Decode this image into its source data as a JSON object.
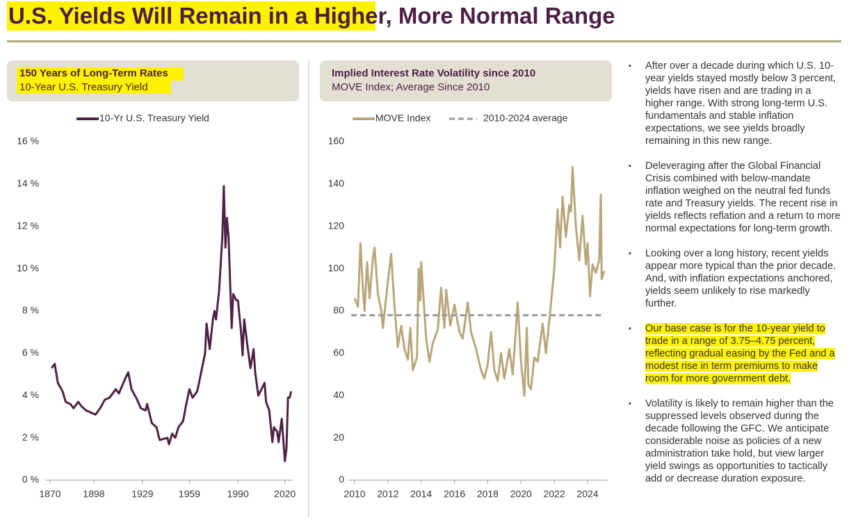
{
  "header": {
    "title": "U.S. Yields Will Remain in a Higher, More Normal Range"
  },
  "chart_data": [
    {
      "type": "line",
      "title": "150 Years of Long-Term Rates",
      "subtitle": "10-Year U.S. Treasury Yield",
      "x": [
        1871,
        1873,
        1875,
        1878,
        1880,
        1883,
        1885,
        1888,
        1890,
        1893,
        1896,
        1899,
        1902,
        1905,
        1908,
        1912,
        1914,
        1918,
        1920,
        1922,
        1925,
        1928,
        1931,
        1932,
        1935,
        1938,
        1940,
        1945,
        1946,
        1948,
        1950,
        1952,
        1955,
        1957,
        1959,
        1961,
        1964,
        1966,
        1969,
        1970,
        1972,
        1974,
        1975,
        1976,
        1978,
        1980,
        1981,
        1982,
        1983,
        1984,
        1986,
        1987,
        1989,
        1990,
        1992,
        1993,
        1994,
        1996,
        1998,
        2000,
        2001,
        2003,
        2005,
        2007,
        2008,
        2010,
        2012,
        2013,
        2015,
        2016,
        2018,
        2019,
        2020,
        2021,
        2022,
        2023,
        2024
      ],
      "series": [
        {
          "name": "10-Yr U.S. Treasury Yield",
          "color": "#4f2146",
          "values": [
            5.3,
            5.5,
            4.6,
            4.2,
            3.7,
            3.6,
            3.4,
            3.7,
            3.5,
            3.3,
            3.2,
            3.1,
            3.4,
            3.8,
            3.9,
            4.3,
            4.1,
            4.8,
            5.1,
            4.3,
            3.9,
            3.4,
            3.3,
            3.6,
            2.7,
            2.5,
            1.9,
            2.0,
            1.7,
            2.2,
            2.0,
            2.5,
            2.8,
            3.6,
            4.3,
            3.9,
            4.2,
            4.9,
            6.0,
            7.4,
            6.2,
            7.6,
            8.0,
            7.6,
            9.0,
            11.5,
            13.9,
            11.0,
            12.4,
            11.5,
            7.2,
            8.8,
            8.5,
            8.5,
            7.0,
            5.9,
            7.6,
            6.4,
            5.3,
            6.2,
            5.1,
            4.0,
            4.3,
            4.6,
            3.7,
            3.3,
            1.8,
            2.5,
            2.3,
            1.8,
            2.9,
            1.9,
            0.9,
            1.5,
            3.9,
            3.9,
            4.2
          ]
        }
      ],
      "xlim": [
        1869,
        2025
      ],
      "xticks": [
        1870,
        1898,
        1929,
        1959,
        1990,
        2020
      ],
      "ylim": [
        0,
        16
      ],
      "yticks": [
        {
          "value": 0,
          "label": "0 %"
        },
        {
          "value": 2,
          "label": "2 %"
        },
        {
          "value": 4,
          "label": "4 %"
        },
        {
          "value": 6,
          "label": "6 %"
        },
        {
          "value": 8,
          "label": "8 %"
        },
        {
          "value": 10,
          "label": "10 %"
        },
        {
          "value": 12,
          "label": "12 %"
        },
        {
          "value": 14,
          "label": "14 %"
        },
        {
          "value": 16,
          "label": "16 %"
        }
      ],
      "grid": false,
      "legend": "top"
    },
    {
      "type": "line",
      "title": "Implied Interest Rate Volatility since 2010",
      "subtitle": "MOVE Index; Average Since 2010",
      "x": [
        2010.0,
        2010.2,
        2010.35,
        2010.5,
        2010.6,
        2010.75,
        2010.9,
        2011.1,
        2011.2,
        2011.4,
        2011.6,
        2011.7,
        2012.0,
        2012.2,
        2012.4,
        2012.6,
        2012.8,
        2013.0,
        2013.2,
        2013.35,
        2013.5,
        2013.75,
        2013.85,
        2013.95,
        2014.0,
        2014.3,
        2014.5,
        2014.7,
        2015.0,
        2015.2,
        2015.4,
        2015.5,
        2015.75,
        2016.0,
        2016.3,
        2016.5,
        2016.8,
        2017.0,
        2017.3,
        2017.6,
        2017.8,
        2018.0,
        2018.2,
        2018.4,
        2018.6,
        2018.8,
        2019.0,
        2019.3,
        2019.5,
        2019.7,
        2019.8,
        2020.0,
        2020.2,
        2020.35,
        2020.45,
        2020.6,
        2020.8,
        2021.0,
        2021.3,
        2021.5,
        2021.8,
        2022.0,
        2022.2,
        2022.35,
        2022.5,
        2022.7,
        2022.9,
        2023.0,
        2023.1,
        2023.3,
        2023.5,
        2023.7,
        2023.9,
        2024.0,
        2024.15,
        2024.3,
        2024.5,
        2024.7,
        2024.8,
        2024.85,
        2025.0
      ],
      "series": [
        {
          "name": "MOVE Index",
          "color": "#b9a77b",
          "values": [
            86,
            82,
            112,
            90,
            80,
            103,
            86,
            105,
            110,
            88,
            80,
            72,
            94,
            107,
            82,
            63,
            73,
            62,
            57,
            72,
            52,
            58,
            100,
            85,
            103,
            67,
            56,
            65,
            71,
            91,
            72,
            90,
            73,
            83,
            70,
            67,
            84,
            70,
            62,
            52,
            48,
            55,
            70,
            52,
            47,
            60,
            48,
            62,
            50,
            72,
            84,
            56,
            40,
            72,
            45,
            43,
            58,
            56,
            74,
            60,
            83,
            100,
            128,
            110,
            134,
            115,
            130,
            127,
            148,
            120,
            104,
            125,
            102,
            112,
            87,
            102,
            98,
            104,
            135,
            95,
            99
          ]
        }
      ],
      "reference_line": {
        "name": "2010-2024 average",
        "value": 78,
        "color": "#9b9b9b"
      },
      "xlim": [
        2009.8,
        2025.2
      ],
      "xticks": [
        2010,
        2012,
        2014,
        2016,
        2018,
        2020,
        2022,
        2024
      ],
      "ylim": [
        0,
        160
      ],
      "yticks": [
        0,
        20,
        40,
        60,
        80,
        100,
        120,
        140,
        160
      ],
      "grid": false,
      "legend": "top"
    }
  ],
  "bullets": [
    "After over a decade during which U.S. 10-year yields stayed mostly below 3 percent, yields have risen and are trading in a higher range. With strong long-term U.S. fundamentals and stable inflation expectations, we see yields broadly remaining in this new range.",
    "Deleveraging after the Global Financial Crisis combined with below-mandate inflation weighed on the neutral fed funds rate and Treasury yields. The recent rise in yields reflects reflation and a return to more normal expectations for long-term growth.",
    "Looking over a long history, recent yields appear more typical than the prior decade. And, with inflation expectations anchored, yields seem unlikely to rise markedly further.",
    "Our base case is for the 10-year yield to trade in a range of 3.75–4.75 percent, reflecting gradual easing by the Fed and a modest rise in term premiums to make room for more government debt.",
    "Volatility is likely to remain higher than the suppressed levels observed during the decade following the GFC. We anticipate considerable noise as policies of a new administration take hold, but view larger yield swings as opportunities to tactically add or decrease duration exposure."
  ]
}
